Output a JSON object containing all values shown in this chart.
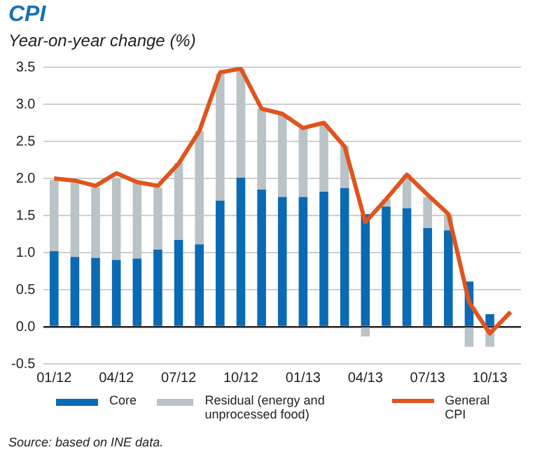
{
  "chart_data": {
    "type": "bar",
    "title": "CPI",
    "subtitle": "Year-on-year change (%)",
    "categories": [
      "01/12",
      null,
      null,
      "04/12",
      null,
      null,
      "07/12",
      null,
      null,
      "10/12",
      null,
      null,
      "01/13",
      null,
      null,
      "04/13",
      null,
      null,
      "07/13",
      null,
      null,
      "10/13",
      null
    ],
    "stacked": true,
    "series": [
      {
        "name": "Core",
        "color": "#0a6ab4",
        "values": [
          1.02,
          0.94,
          0.93,
          0.9,
          0.92,
          1.04,
          1.17,
          1.11,
          1.7,
          2.01,
          1.85,
          1.75,
          1.75,
          1.82,
          1.87,
          1.52,
          1.62,
          1.6,
          1.33,
          1.3,
          0.61,
          0.17,
          null
        ]
      },
      {
        "name": "Residual (energy and unprocessed food)",
        "color": "#b9c3c8",
        "values": [
          0.96,
          1.0,
          0.95,
          1.1,
          1.02,
          0.84,
          1.04,
          1.53,
          1.71,
          1.46,
          1.09,
          1.12,
          0.93,
          0.92,
          0.57,
          -0.13,
          0.1,
          0.45,
          0.42,
          0.22,
          -0.27,
          -0.27,
          null
        ]
      },
      {
        "name": "General CPI",
        "type": "line",
        "color": "#e0541e",
        "values": [
          2.0,
          1.97,
          1.9,
          2.07,
          1.95,
          1.9,
          2.2,
          2.64,
          3.43,
          3.48,
          2.94,
          2.87,
          2.68,
          2.75,
          2.43,
          1.41,
          1.72,
          2.05,
          1.78,
          1.52,
          0.33,
          -0.09,
          0.2
        ]
      }
    ],
    "ylim": [
      -0.5,
      3.5
    ],
    "yticks": [
      {
        "value": -0.5,
        "label": "-0.5"
      },
      {
        "value": 0,
        "label": "0.0"
      },
      {
        "value": 0.5,
        "label": "0.5"
      },
      {
        "value": 1,
        "label": "1.0"
      },
      {
        "value": 1.5,
        "label": "1.5"
      },
      {
        "value": 2,
        "label": "2.0"
      },
      {
        "value": 2.5,
        "label": "2.5"
      },
      {
        "value": 3,
        "label": "3.0"
      },
      {
        "value": 3.5,
        "label": "3.5"
      }
    ],
    "grid": "y",
    "legend": "bottom",
    "marker": "none",
    "line_style": "solid",
    "annotations": [
      "Source: based on INE data."
    ]
  }
}
